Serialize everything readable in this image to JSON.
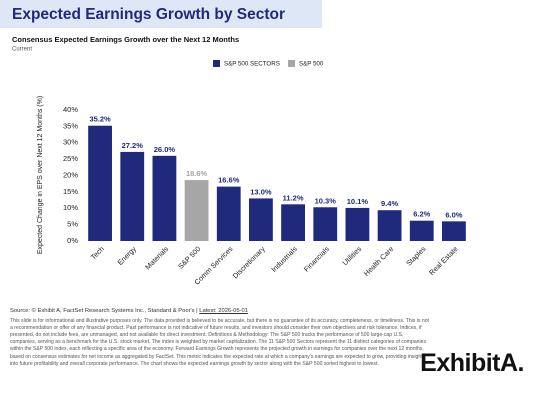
{
  "chart_data": {
    "type": "bar",
    "title": "Expected Earnings Growth by Sector",
    "subtitle": "Consensus Expected Earnings Growth over the Next 12 Months",
    "note": "Current",
    "y_label": "Expected Change in EPS over Next 12 Months (%)",
    "legend": [
      {
        "name": "S&P 500 SECTORS",
        "color": "#1f2a7c"
      },
      {
        "name": "S&P 500",
        "color": "#a6a6a6"
      }
    ],
    "categories": [
      "Tech",
      "Energy",
      "Materials",
      "S&P 500",
      "Comm Services",
      "Discretionary",
      "Industrials",
      "Financials",
      "Utilities",
      "Health Care",
      "Staples",
      "Real Estate"
    ],
    "values": [
      35.2,
      27.2,
      26.0,
      18.6,
      16.6,
      13.0,
      11.2,
      10.3,
      10.1,
      9.4,
      6.2,
      6.0
    ],
    "value_labels": [
      "35.2%",
      "27.2%",
      "26.0%",
      "18.6%",
      "16.6%",
      "13.0%",
      "11.2%",
      "10.3%",
      "10.1%",
      "9.4%",
      "6.2%",
      "6.0%"
    ],
    "colors": [
      "#1f2a7c",
      "#1f2a7c",
      "#1f2a7c",
      "#a6a6a6",
      "#1f2a7c",
      "#1f2a7c",
      "#1f2a7c",
      "#1f2a7c",
      "#1f2a7c",
      "#1f2a7c",
      "#1f2a7c",
      "#1f2a7c"
    ],
    "ylim": [
      0,
      40
    ],
    "yticks": [
      {
        "value": 0,
        "label": "0%"
      },
      {
        "value": 5,
        "label": "5%"
      },
      {
        "value": 10,
        "label": "10%"
      },
      {
        "value": 15,
        "label": "15%"
      },
      {
        "value": 20,
        "label": "20%"
      },
      {
        "value": 25,
        "label": "25%"
      },
      {
        "value": 30,
        "label": "30%"
      },
      {
        "value": 35,
        "label": "35%"
      },
      {
        "value": 40,
        "label": "40%"
      }
    ],
    "grid": false
  },
  "footer": {
    "source": "Source: © Exhibit A, FactSet Research Systems Inc., Standard & Poor's | ",
    "latest": "Latest: 2026-05-01",
    "disclaimer": "This slide is for informational and illustrative purposes only. The data provided is believed to be accurate, but there is no guarantee of its accuracy, completeness, or timeliness. This is not a recommendation or offer of any financial product. Past performance is not indicative of future results, and investors should consider their own objectives and risk tolerance. Indices, if presented, do not include fees, are unmanaged, and not available for direct investment. Definitions & Methodology: The S&P 500 tracks the performance of 500 large-cap U.S. companies, serving as a benchmark for the U.S. stock market. The index is weighted by market capitalization. The 11 S&P 500 Sectors represent the 11 distinct categories of companies within the S&P 500 index, each reflecting a specific area of the economy. Forward Earnings Growth represents the projected growth in earnings for companies over the next 12 months, based on consensus estimates for net income as aggregated by FactSet. This metric indicates the expected rate at which a company's earnings are expected to grow, providing insight into future profitability and overall corporate performance. The chart shows the expected earnings growth by sector along with the S&P 500 sorted highest to lowest.",
    "logo": "ExhibitA."
  }
}
